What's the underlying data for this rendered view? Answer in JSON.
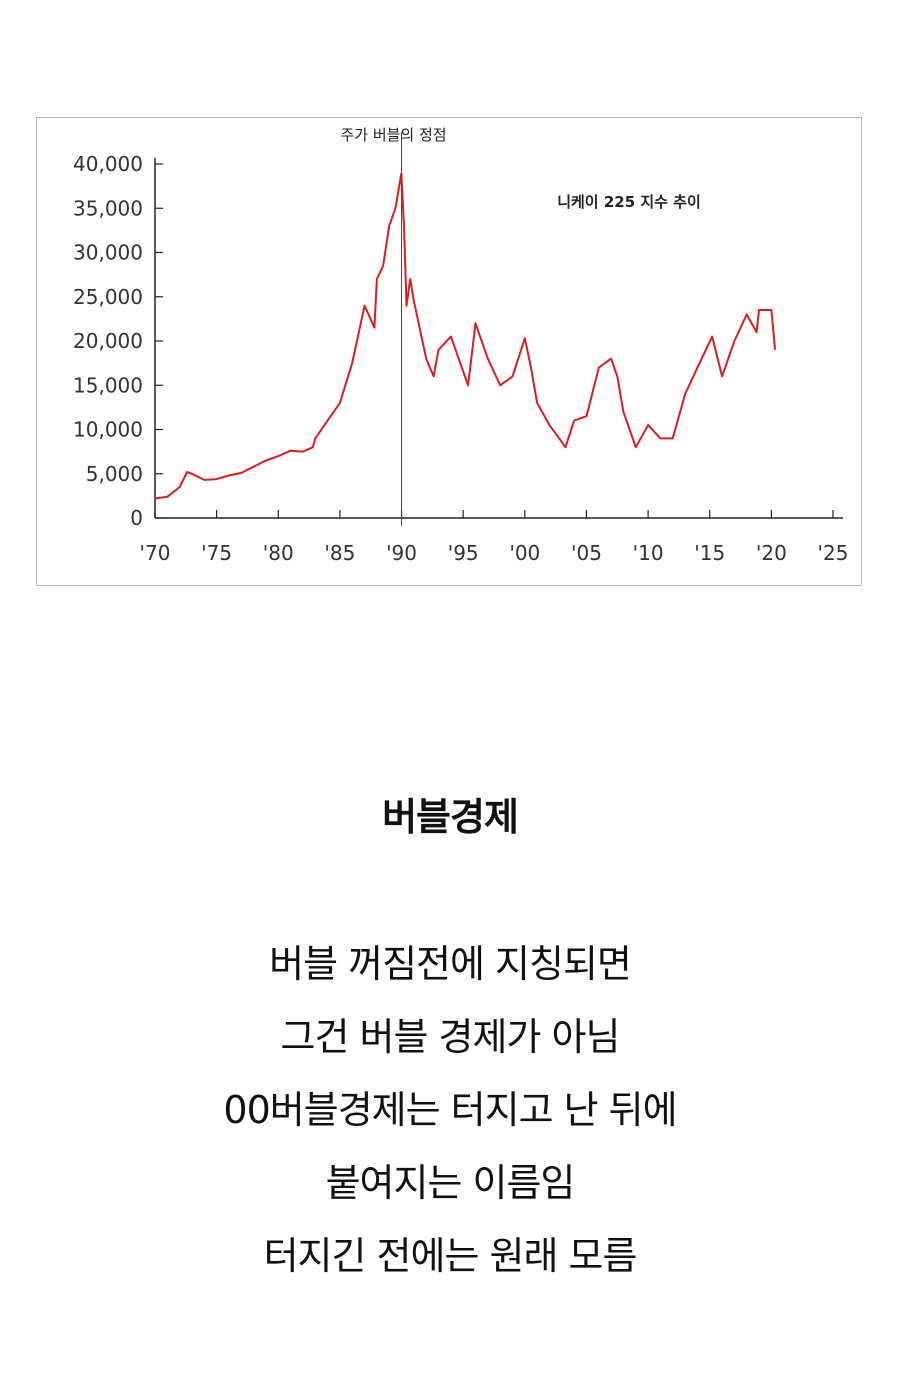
{
  "chart_data": {
    "type": "line",
    "title": "니케이 225 지수 추이",
    "annotation": {
      "text": "주가 버블의 정점",
      "x": 1990
    },
    "xlabel": "",
    "ylabel": "",
    "xlim": [
      1970,
      2025
    ],
    "ylim": [
      0,
      40000
    ],
    "x_ticks": [
      "'70",
      "'75",
      "'80",
      "'85",
      "'90",
      "'95",
      "'00",
      "'05",
      "'10",
      "'15",
      "'20",
      "'25"
    ],
    "y_ticks": [
      "0",
      "5,000",
      "10,000",
      "15,000",
      "20,000",
      "25,000",
      "30,000",
      "35,000",
      "40,000"
    ],
    "grid": false,
    "series": [
      {
        "color": "#d62020",
        "x": [
          1970,
          1971,
          1972,
          1972.6,
          1973,
          1974,
          1975,
          1976,
          1977,
          1978,
          1979,
          1980,
          1981,
          1982,
          1982.8,
          1983,
          1984,
          1985,
          1986,
          1987,
          1987.8,
          1988,
          1988.5,
          1989,
          1989.5,
          1989.98,
          1990.2,
          1990.4,
          1990.7,
          1991,
          1992,
          1992.6,
          1993,
          1994,
          1995.4,
          1996,
          1997,
          1998,
          1999,
          2000,
          2000.5,
          2001,
          2002,
          2003.3,
          2004,
          2005,
          2006,
          2007,
          2007.5,
          2008,
          2009,
          2010,
          2011,
          2012,
          2013,
          2014,
          2015.2,
          2016,
          2017,
          2018,
          2018.8,
          2019,
          2020,
          2020.3
        ],
        "y": [
          2200,
          2400,
          3500,
          5200,
          5000,
          4300,
          4400,
          4800,
          5100,
          5800,
          6500,
          7000,
          7600,
          7500,
          8000,
          9000,
          11000,
          13000,
          17500,
          24000,
          21500,
          27000,
          28500,
          33000,
          35000,
          38900,
          33000,
          24000,
          27000,
          24500,
          18000,
          16000,
          19000,
          20500,
          15000,
          22000,
          18000,
          15000,
          16000,
          20300,
          17000,
          13000,
          10500,
          8000,
          11000,
          11500,
          17000,
          18000,
          16000,
          12000,
          8000,
          10500,
          9000,
          9000,
          14000,
          17000,
          20500,
          16000,
          20000,
          23000,
          21000,
          23500,
          23500,
          19000
        ]
      }
    ]
  },
  "headline": "버블경제",
  "body_lines": [
    "버블 꺼짐전에 지칭되면",
    "그건 버블 경제가 아님",
    "00버블경제는 터지고 난 뒤에",
    "붙여지는 이름임",
    "터지긴 전에는 원래 모름"
  ]
}
